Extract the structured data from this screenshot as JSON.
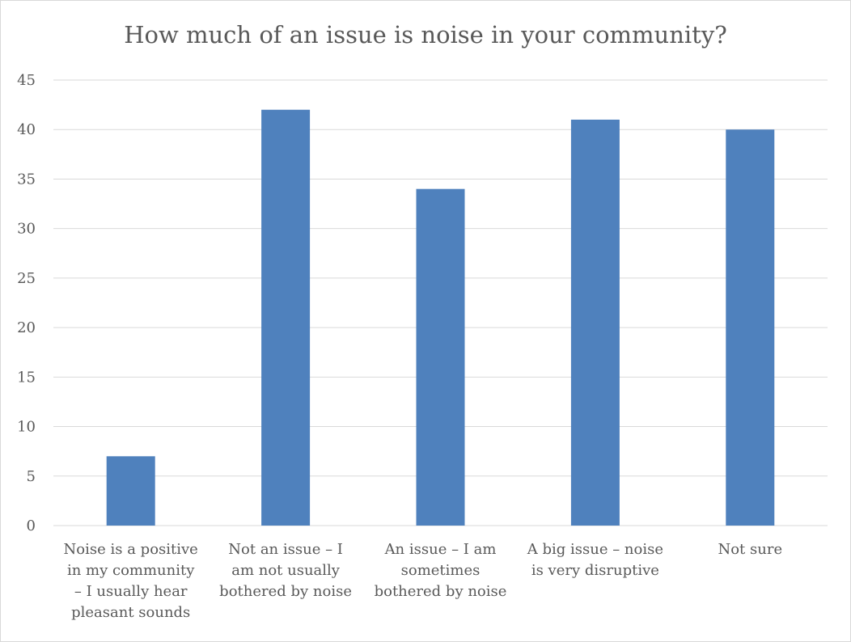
{
  "chart_data": {
    "type": "bar",
    "title": "How much of an issue is noise in your community?",
    "categories": [
      [
        "Noise is a positive",
        "in my community",
        "– I usually hear",
        "pleasant sounds"
      ],
      [
        "Not an issue – I",
        "am not usually",
        "bothered by noise"
      ],
      [
        "An issue – I am",
        "sometimes",
        "bothered by noise"
      ],
      [
        "A big issue – noise",
        "is very disruptive"
      ],
      [
        "Not sure"
      ]
    ],
    "values": [
      7,
      42,
      34,
      41,
      40
    ],
    "ylim": [
      0,
      45
    ],
    "yticks": [
      0,
      5,
      10,
      15,
      20,
      25,
      30,
      35,
      40,
      45
    ],
    "grid": true,
    "legend": "none",
    "bar_color": "#4f81bd",
    "grid_color": "#d9d9d9"
  }
}
